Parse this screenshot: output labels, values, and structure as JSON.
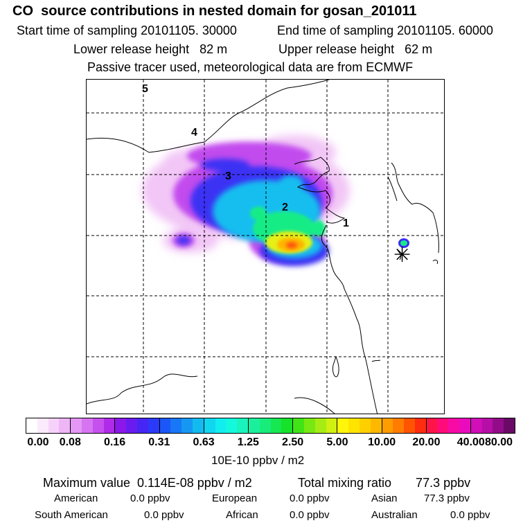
{
  "header": {
    "title": "CO  source contributions in nested domain for gosan_201011",
    "start_time": "Start time of sampling 20101105. 30000",
    "end_time": "End time of sampling 20101105. 60000",
    "lower_release": "Lower release height   82 m",
    "upper_release": "Upper release height   62 m",
    "tracer_note": "Passive tracer used, meteorological data are from ECMWF"
  },
  "map": {
    "markers": [
      "1",
      "2",
      "3",
      "4",
      "5"
    ],
    "receptor_symbol": "✳"
  },
  "colorbar": {
    "ticks": [
      "0.00",
      "0.08",
      "0.16",
      "0.31",
      "0.63",
      "1.25",
      "2.50",
      "5.00",
      "10.00",
      "20.00",
      "40.00",
      "80.00"
    ],
    "units": "10E-10 ppbv / m2",
    "segments": [
      [
        "#ffffff",
        "#fbeafc",
        "#f6d2fa",
        "#eeb6f6"
      ],
      [
        "#e497f4",
        "#d774f2",
        "#c650ee",
        "#b02aea"
      ],
      [
        "#8a18ea",
        "#6a1cf0",
        "#4526f4",
        "#2a3af8"
      ],
      [
        "#1b57f8",
        "#1777f6",
        "#1698f2",
        "#12baf0"
      ],
      [
        "#10d6f0",
        "#12eef0",
        "#14f8dc",
        "#1af4bc"
      ],
      [
        "#1af09c",
        "#18ec7a",
        "#16e852",
        "#16e22a"
      ],
      [
        "#40e416",
        "#78e812",
        "#a6ec12",
        "#d0f012"
      ],
      [
        "#fff60a",
        "#ffe400",
        "#ffd000",
        "#ffb800"
      ],
      [
        "#ff9c00",
        "#ff7c00",
        "#ff5400",
        "#ff2c10"
      ],
      [
        "#ff1448",
        "#ff0c7a",
        "#f80aa4",
        "#ea0cbc"
      ],
      [
        "#d10eb8",
        "#b60ea6",
        "#920c8a",
        "#6a0a66"
      ]
    ]
  },
  "stats": {
    "max_value": "Maximum value  0.114E-08 ppbv / m2",
    "total_mixing": "Total mixing ratio       77.3 ppbv",
    "american": "American",
    "american_val": "0.0 ppbv",
    "european": "European",
    "european_val": "0.0 ppbv",
    "asian": "Asian",
    "asian_val": "77.3 ppbv",
    "south_american": "South American",
    "south_american_val": "0.0 ppbv",
    "african": "African",
    "african_val": "0.0 ppbv",
    "australian": "Australian",
    "australian_val": "0.0 ppbv"
  }
}
